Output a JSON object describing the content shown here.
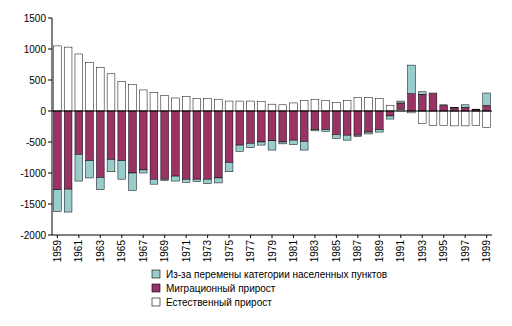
{
  "chart_data": {
    "type": "bar",
    "stacked": true,
    "legend": "bottom",
    "categories": [
      "1959",
      null,
      "1961",
      null,
      "1963",
      null,
      "1965",
      null,
      "1967",
      null,
      "1969",
      null,
      "1971",
      null,
      "1973",
      null,
      "1975",
      null,
      "1977",
      null,
      "1979",
      null,
      "1981",
      null,
      "1983",
      null,
      "1985",
      null,
      "1987",
      null,
      "1989",
      null,
      "1991",
      null,
      "1993",
      null,
      "1995",
      null,
      "1997",
      null,
      "1999"
    ],
    "series": [
      {
        "name": "Естественный прирост",
        "color": "#ffffff",
        "values": [
          1050,
          1030,
          920,
          780,
          700,
          600,
          480,
          430,
          340,
          300,
          250,
          210,
          230,
          200,
          200,
          190,
          160,
          160,
          160,
          150,
          110,
          100,
          130,
          170,
          190,
          170,
          140,
          170,
          220,
          220,
          200,
          90,
          30,
          -30,
          -200,
          -230,
          -230,
          -240,
          -240,
          -230,
          -270
        ]
      },
      {
        "name": "Миграционный прирост",
        "color": "#993366",
        "values": [
          -1270,
          -1260,
          -700,
          -800,
          -1070,
          -780,
          -800,
          -1000,
          -950,
          -1100,
          -1100,
          -1050,
          -1100,
          -1100,
          -1100,
          -1080,
          -830,
          -550,
          -520,
          -500,
          -480,
          -500,
          -470,
          -490,
          -300,
          -300,
          -380,
          -390,
          -390,
          -340,
          -300,
          -80,
          100,
          280,
          270,
          280,
          90,
          50,
          60,
          20,
          90
        ]
      },
      {
        "name": "Из-за перемены категории населенных пунктов",
        "color": "#99cccc",
        "values": [
          -350,
          -370,
          -430,
          -280,
          -200,
          -200,
          -300,
          -280,
          -50,
          -80,
          -20,
          -80,
          -50,
          -40,
          -70,
          -80,
          -150,
          -100,
          -70,
          -50,
          -150,
          -30,
          -70,
          -140,
          -20,
          -30,
          -60,
          -80,
          -20,
          -30,
          -40,
          -50,
          30,
          460,
          40,
          10,
          10,
          10,
          40,
          10,
          200
        ]
      }
    ],
    "ylim": [
      -2000,
      1500
    ],
    "yticks": [
      -2000,
      -1500,
      -1000,
      -500,
      0,
      500,
      1000,
      1500
    ],
    "grid": false
  }
}
